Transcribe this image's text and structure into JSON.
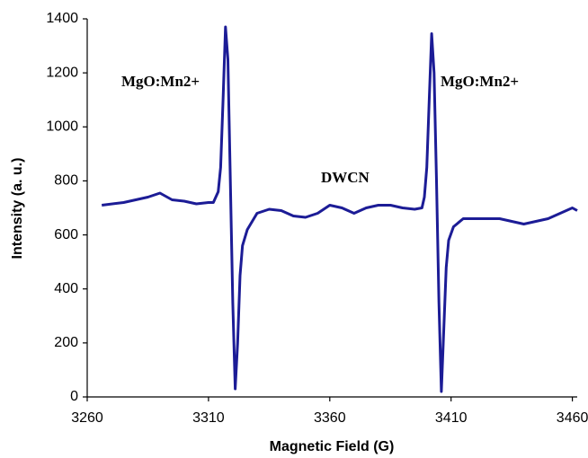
{
  "chart_data": {
    "type": "line",
    "xlabel": "Magnetic Field (G)",
    "ylabel": "Intensity (a. u.)",
    "annotations": [
      "MgO:Mn2+",
      "DWCN",
      "MgO:Mn2+"
    ],
    "xlim": [
      3260,
      3462
    ],
    "xticks": [
      3260,
      3310,
      3360,
      3410,
      3460
    ],
    "ylim": [
      0,
      1400
    ],
    "yticks": [
      0,
      200,
      400,
      600,
      800,
      1000,
      1200,
      1400
    ],
    "grid": false,
    "series": [
      {
        "color": "#1c1c96",
        "x": [
          3266,
          3275,
          3285,
          3290,
          3295,
          3300,
          3305,
          3310,
          3312,
          3314,
          3315,
          3316,
          3317,
          3318,
          3319,
          3320,
          3321,
          3322,
          3323,
          3324,
          3326,
          3330,
          3335,
          3340,
          3345,
          3350,
          3355,
          3360,
          3365,
          3370,
          3375,
          3380,
          3385,
          3390,
          3395,
          3398,
          3399,
          3400,
          3401,
          3402,
          3403,
          3404,
          3405,
          3406,
          3407,
          3408,
          3409,
          3411,
          3415,
          3420,
          3430,
          3440,
          3450,
          3455,
          3460,
          3462
        ],
        "values": [
          710,
          720,
          740,
          755,
          730,
          725,
          715,
          720,
          720,
          760,
          850,
          1100,
          1370,
          1250,
          800,
          350,
          30,
          200,
          450,
          560,
          620,
          680,
          695,
          690,
          670,
          665,
          680,
          710,
          700,
          680,
          700,
          710,
          710,
          700,
          695,
          700,
          740,
          850,
          1100,
          1345,
          1200,
          800,
          350,
          20,
          250,
          480,
          580,
          630,
          660,
          660,
          660,
          640,
          660,
          680,
          700,
          690
        ]
      }
    ]
  }
}
